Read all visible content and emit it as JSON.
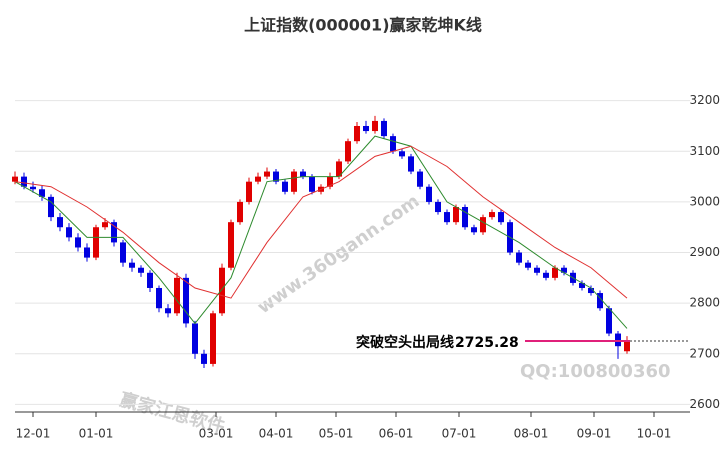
{
  "chart_data": {
    "type": "candlestick",
    "title": "上证指数(000001)赢家乾坤K线",
    "x": [
      0,
      3,
      6,
      9,
      12,
      15,
      18,
      21,
      24,
      27,
      30,
      33,
      36,
      39,
      42,
      45,
      48,
      51,
      54,
      57,
      60,
      63,
      66,
      69,
      72,
      75,
      78,
      81,
      84,
      87,
      90,
      93,
      96,
      99,
      102,
      105,
      108,
      111,
      114,
      117,
      120,
      123,
      126,
      129,
      132,
      135,
      138,
      141,
      144,
      147,
      150,
      153,
      156,
      159,
      162,
      165,
      168,
      171,
      174,
      177,
      180,
      183,
      186,
      189,
      192,
      195,
      198,
      201,
      204
    ],
    "open": [
      3040,
      3050,
      3030,
      3025,
      3010,
      2970,
      2950,
      2930,
      2910,
      2890,
      2950,
      2960,
      2920,
      2880,
      2870,
      2860,
      2830,
      2790,
      2780,
      2850,
      2760,
      2700,
      2680,
      2780,
      2870,
      2960,
      3000,
      3040,
      3050,
      3060,
      3040,
      3020,
      3060,
      3050,
      3020,
      3030,
      3050,
      3080,
      3120,
      3150,
      3140,
      3160,
      3130,
      3100,
      3090,
      3060,
      3030,
      3000,
      2980,
      2960,
      2990,
      2950,
      2940,
      2970,
      2980,
      2960,
      2900,
      2880,
      2870,
      2860,
      2850,
      2870,
      2860,
      2840,
      2830,
      2820,
      2790,
      2740,
      2705
    ],
    "high": [
      3060,
      3058,
      3040,
      3032,
      3015,
      2978,
      2958,
      2938,
      2918,
      2955,
      2968,
      2965,
      2925,
      2888,
      2875,
      2865,
      2835,
      2798,
      2860,
      2858,
      2765,
      2708,
      2785,
      2878,
      2965,
      3005,
      3048,
      3058,
      3068,
      3065,
      3045,
      3065,
      3065,
      3055,
      3035,
      3058,
      3085,
      3125,
      3158,
      3160,
      3170,
      3165,
      3135,
      3105,
      3095,
      3065,
      3035,
      3005,
      2985,
      2995,
      2995,
      2955,
      2975,
      2985,
      2985,
      2965,
      2905,
      2885,
      2875,
      2865,
      2875,
      2875,
      2865,
      2845,
      2835,
      2825,
      2795,
      2745,
      2735
    ],
    "low": [
      3035,
      3025,
      3018,
      3002,
      2962,
      2942,
      2922,
      2902,
      2882,
      2885,
      2945,
      2912,
      2872,
      2862,
      2852,
      2822,
      2782,
      2772,
      2775,
      2752,
      2690,
      2672,
      2675,
      2775,
      2865,
      2955,
      2995,
      3035,
      3045,
      3035,
      3015,
      3015,
      3045,
      3015,
      3015,
      3025,
      3045,
      3075,
      3115,
      3135,
      3135,
      3125,
      3095,
      3085,
      3055,
      3025,
      2995,
      2975,
      2955,
      2955,
      2945,
      2935,
      2935,
      2965,
      2955,
      2895,
      2875,
      2865,
      2855,
      2845,
      2845,
      2855,
      2835,
      2825,
      2815,
      2785,
      2735,
      2690,
      2700
    ],
    "close": [
      3050,
      3030,
      3025,
      3010,
      2970,
      2950,
      2930,
      2910,
      2890,
      2950,
      2960,
      2920,
      2880,
      2870,
      2860,
      2830,
      2790,
      2780,
      2850,
      2760,
      2700,
      2680,
      2780,
      2870,
      2960,
      3000,
      3040,
      3050,
      3060,
      3040,
      3020,
      3060,
      3050,
      3020,
      3030,
      3050,
      3080,
      3120,
      3150,
      3140,
      3160,
      3130,
      3100,
      3090,
      3060,
      3030,
      3000,
      2980,
      2960,
      2990,
      2950,
      2940,
      2970,
      2980,
      2960,
      2900,
      2880,
      2870,
      2860,
      2850,
      2870,
      2860,
      2840,
      2830,
      2820,
      2790,
      2740,
      2715,
      2725
    ],
    "up_color": "#e00000",
    "down_color": "#0000e0",
    "lines": [
      {
        "color": "#2e8b2e",
        "x": [
          0,
          12,
          24,
          36,
          48,
          60,
          72,
          84,
          96,
          108,
          120,
          132,
          144,
          156,
          168,
          180,
          192,
          204
        ],
        "values": [
          3040,
          3000,
          2930,
          2930,
          2850,
          2760,
          2850,
          3040,
          3050,
          3050,
          3130,
          3110,
          3000,
          2960,
          2920,
          2870,
          2830,
          2750
        ]
      },
      {
        "color": "#e03030",
        "x": [
          0,
          12,
          24,
          36,
          48,
          60,
          72,
          84,
          96,
          108,
          120,
          132,
          144,
          156,
          168,
          180,
          192,
          204
        ],
        "values": [
          3040,
          3030,
          2990,
          2940,
          2880,
          2830,
          2810,
          2920,
          3010,
          3040,
          3090,
          3110,
          3070,
          3010,
          2960,
          2910,
          2870,
          2810
        ]
      }
    ],
    "xlim": [
      0,
      225
    ],
    "xticks": [
      {
        "value": 6,
        "label": "12-01"
      },
      {
        "value": 27,
        "label": "01-01"
      },
      {
        "value": 67,
        "label": "03-01"
      },
      {
        "value": 87,
        "label": "04-01"
      },
      {
        "value": 107,
        "label": "05-01"
      },
      {
        "value": 127,
        "label": "06-01"
      },
      {
        "value": 148,
        "label": "07-01"
      },
      {
        "value": 172,
        "label": "08-01"
      },
      {
        "value": 193,
        "label": "09-01"
      },
      {
        "value": 213,
        "label": "10-01"
      }
    ],
    "ylim": [
      2585,
      3310
    ],
    "yticks": [
      2600,
      2700,
      2800,
      2900,
      3000,
      3100,
      3200
    ],
    "grid": true,
    "annotation": {
      "text": "突破空头出局线",
      "value": 2725.28,
      "color": "#e0207a"
    },
    "watermarks": [
      "赢家江恩软件",
      "www.360gann.com",
      "QQ:100800360"
    ]
  }
}
